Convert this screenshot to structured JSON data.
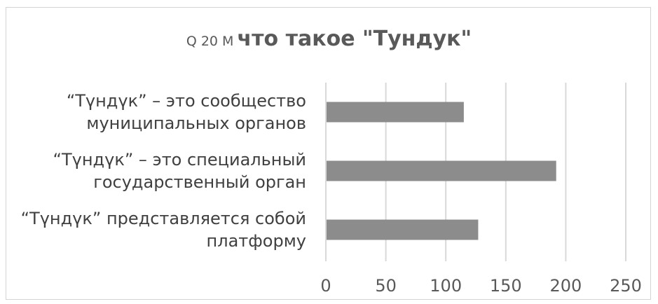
{
  "chart_data": {
    "type": "bar",
    "orientation": "horizontal",
    "title_prefix": "Q 20 M",
    "title": "что такое \"Тундук\"",
    "categories": [
      [
        "“Түндүк” – это сообщество",
        "муниципальных органов"
      ],
      [
        "“Түндүк” – это специальный",
        "государственный орган"
      ],
      [
        "“Түндүк” представляется собой",
        "платформу"
      ]
    ],
    "values": [
      115,
      192,
      127
    ],
    "xlim": [
      0,
      250
    ],
    "xticks": [
      0,
      50,
      100,
      150,
      200,
      250
    ],
    "grid": true,
    "bar_color": "#8c8c8c",
    "grid_color": "#d9d9d9",
    "legend": "none"
  }
}
